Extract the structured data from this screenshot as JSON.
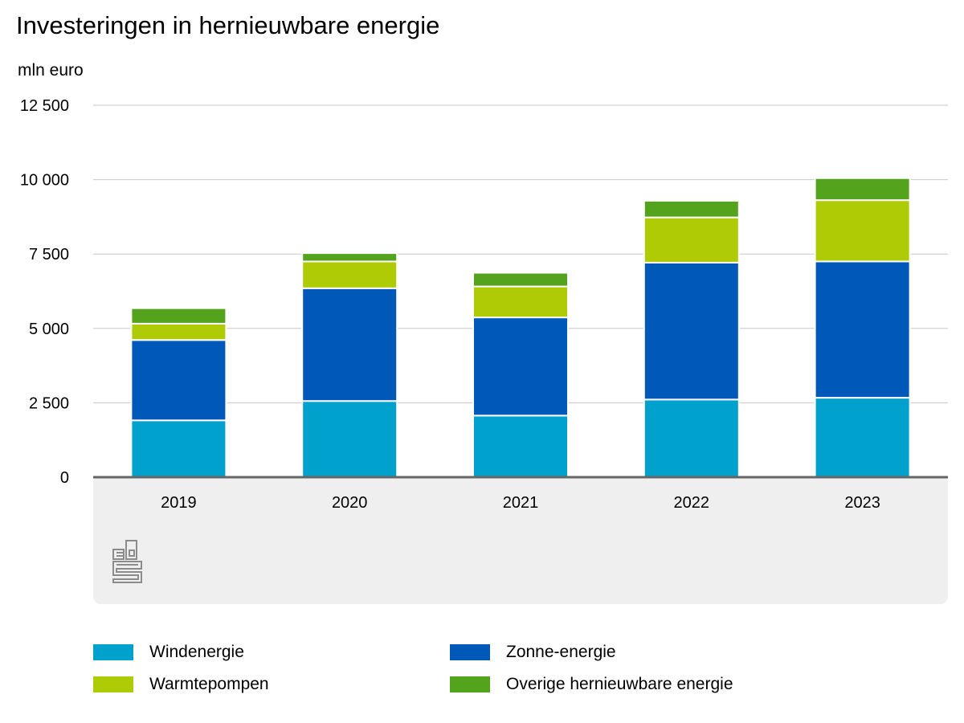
{
  "chart_data": {
    "type": "bar",
    "stacked": true,
    "title": "Investeringen in hernieuwbare energie",
    "ylabel": "mln euro",
    "xlabel": "",
    "categories": [
      "2019",
      "2020",
      "2021",
      "2022",
      "2023"
    ],
    "ylim": [
      0,
      12500
    ],
    "yticks": [
      0,
      2500,
      5000,
      7500,
      10000,
      12500
    ],
    "ytick_labels": [
      "0",
      "2 500",
      "5 000",
      "7 500",
      "10 000",
      "12 500"
    ],
    "grid": true,
    "legend_position": "bottom",
    "series": [
      {
        "name": "Windenergie",
        "color": "#00a1cd",
        "values": [
          1910,
          2560,
          2070,
          2610,
          2670
        ]
      },
      {
        "name": "Zonne-energie",
        "color": "#0058b8",
        "values": [
          2700,
          3790,
          3300,
          4600,
          4580
        ]
      },
      {
        "name": "Warmtepompen",
        "color": "#afcb05",
        "values": [
          550,
          900,
          1040,
          1520,
          2060
        ]
      },
      {
        "name": "Overige hernieuwbare energie",
        "color": "#53a31d",
        "values": [
          520,
          280,
          460,
          560,
          740
        ]
      }
    ]
  },
  "branding": {
    "logo": "cbs-logo"
  }
}
